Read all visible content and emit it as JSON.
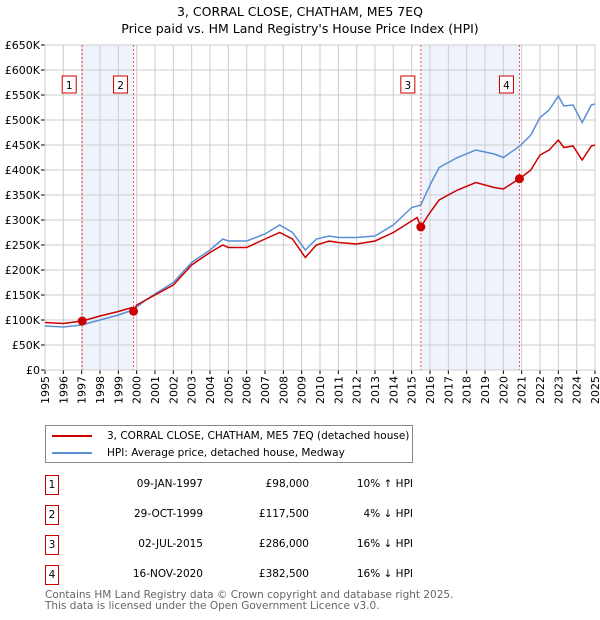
{
  "chart_data": {
    "type": "line",
    "title": "3, CORRAL CLOSE, CHATHAM, ME5 7EQ",
    "subtitle": "Price paid vs. HM Land Registry's House Price Index (HPI)",
    "xlim": [
      1995,
      2025
    ],
    "ylim": [
      0,
      650000
    ],
    "x_ticks": [
      "1995",
      "1996",
      "1997",
      "1998",
      "1999",
      "2000",
      "2001",
      "2002",
      "2003",
      "2004",
      "2005",
      "2006",
      "2007",
      "2008",
      "2009",
      "2010",
      "2011",
      "2012",
      "2013",
      "2014",
      "2015",
      "2016",
      "2017",
      "2018",
      "2019",
      "2020",
      "2021",
      "2022",
      "2023",
      "2024",
      "2025"
    ],
    "y_ticks": [
      {
        "v": 0,
        "label": "£0"
      },
      {
        "v": 50000,
        "label": "£50K"
      },
      {
        "v": 100000,
        "label": "£100K"
      },
      {
        "v": 150000,
        "label": "£150K"
      },
      {
        "v": 200000,
        "label": "£200K"
      },
      {
        "v": 250000,
        "label": "£250K"
      },
      {
        "v": 300000,
        "label": "£300K"
      },
      {
        "v": 350000,
        "label": "£350K"
      },
      {
        "v": 400000,
        "label": "£400K"
      },
      {
        "v": 450000,
        "label": "£450K"
      },
      {
        "v": 500000,
        "label": "£500K"
      },
      {
        "v": 550000,
        "label": "£550K"
      },
      {
        "v": 600000,
        "label": "£600K"
      },
      {
        "v": 650000,
        "label": "£650K"
      }
    ],
    "grid": true,
    "series": [
      {
        "name": "3, CORRAL CLOSE, CHATHAM, ME5 7EQ (detached house)",
        "color": "#cc0000",
        "x": [
          1995,
          1996,
          1997.03,
          1998,
          1999,
          1999.75,
          1999.83,
          2000,
          2001,
          2002,
          2003,
          2004,
          2004.7,
          2005,
          2006,
          2007,
          2007.8,
          2008.5,
          2009.2,
          2009.8,
          2010.5,
          2011,
          2012,
          2013,
          2014,
          2015.3,
          2015.5,
          2016,
          2016.5,
          2017.5,
          2018.5,
          2019.5,
          2020,
          2020.88,
          2021.5,
          2022,
          2022.5,
          2023,
          2023.3,
          2023.8,
          2024.3,
          2024.8,
          2025
        ],
        "y": [
          95000,
          93000,
          98000,
          108000,
          117000,
          125000,
          117500,
          130000,
          150000,
          170000,
          210000,
          235000,
          250000,
          245000,
          245000,
          262000,
          275000,
          262000,
          225000,
          250000,
          258000,
          255000,
          252000,
          258000,
          275000,
          305000,
          286000,
          315000,
          340000,
          360000,
          375000,
          365000,
          362000,
          382500,
          400000,
          430000,
          440000,
          460000,
          445000,
          448000,
          420000,
          448000,
          450000
        ]
      },
      {
        "name": "HPI: Average price, detached house, Medway",
        "color": "#5b8fd4",
        "x": [
          1995,
          1996,
          1997,
          1998,
          1999,
          1999.8,
          2000.5,
          2001,
          2002,
          2003,
          2004,
          2004.7,
          2005,
          2006,
          2007,
          2007.8,
          2008.5,
          2009.2,
          2009.8,
          2010.5,
          2011,
          2012,
          2013,
          2014,
          2015,
          2015.5,
          2016,
          2016.5,
          2017.5,
          2018.5,
          2019.5,
          2020,
          2020.9,
          2021.5,
          2022,
          2022.5,
          2023,
          2023.3,
          2023.8,
          2024.3,
          2024.8,
          2025
        ],
        "y": [
          88000,
          86000,
          90000,
          100000,
          110000,
          120000,
          140000,
          152000,
          175000,
          215000,
          240000,
          262000,
          258000,
          258000,
          272000,
          290000,
          275000,
          240000,
          262000,
          268000,
          265000,
          265000,
          268000,
          290000,
          325000,
          330000,
          370000,
          405000,
          425000,
          440000,
          432000,
          425000,
          448000,
          470000,
          505000,
          520000,
          548000,
          528000,
          530000,
          495000,
          530000,
          532000
        ]
      }
    ],
    "sales": [
      {
        "n": "1",
        "x": 1997.03,
        "y": 98000,
        "date": "09-JAN-1997",
        "price": "£98,000",
        "hpi": "10% ↑ HPI"
      },
      {
        "n": "2",
        "x": 1999.83,
        "y": 117500,
        "date": "29-OCT-1999",
        "price": "£117,500",
        "hpi": "4% ↓ HPI"
      },
      {
        "n": "3",
        "x": 2015.5,
        "y": 286000,
        "date": "02-JUL-2015",
        "price": "£286,000",
        "hpi": "16% ↓ HPI"
      },
      {
        "n": "4",
        "x": 2020.88,
        "y": 382500,
        "date": "16-NOV-2020",
        "price": "£382,500",
        "hpi": "16% ↓ HPI"
      }
    ]
  },
  "footer": {
    "line1": "Contains HM Land Registry data © Crown copyright and database right 2025.",
    "line2": "This data is licensed under the Open Government Licence v3.0."
  }
}
